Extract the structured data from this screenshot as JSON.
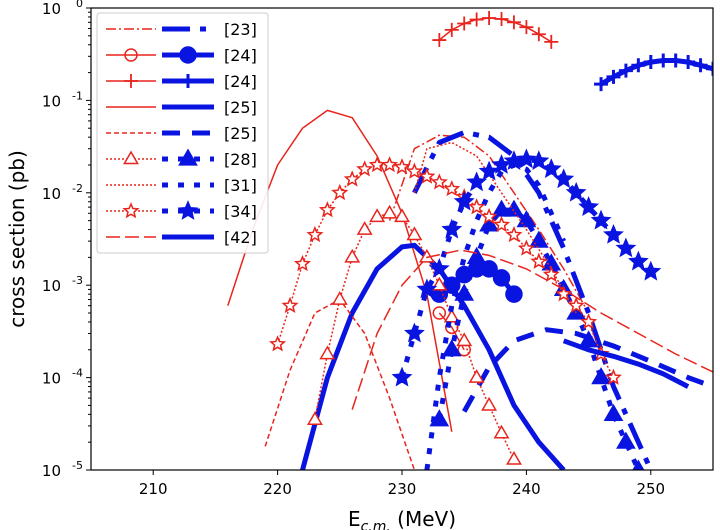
{
  "chart_data": {
    "type": "line",
    "title": "",
    "xlabel": "E",
    "xlabel_sub": "c.m.",
    "xlabel_unit": " (MeV)",
    "ylabel": "cross section (pb)",
    "xlim": [
      205,
      255
    ],
    "ylim": [
      1e-05,
      1
    ],
    "yscale": "log",
    "grid": false,
    "legend_position": "top-left",
    "x_ticks": [
      210,
      220,
      230,
      240,
      250
    ],
    "y_ticks": [
      {
        "base": "10",
        "exp": "0",
        "v": 1
      },
      {
        "base": "10",
        "exp": "-1",
        "v": 0.1
      },
      {
        "base": "10",
        "exp": "-2",
        "v": 0.01
      },
      {
        "base": "10",
        "exp": "-3",
        "v": 0.001
      },
      {
        "base": "10",
        "exp": "-4",
        "v": 0.0001
      },
      {
        "base": "10",
        "exp": "-5",
        "v": 1e-05
      }
    ],
    "colors": {
      "red": "#e8241c",
      "blue": "#0a14e0"
    },
    "legend": [
      {
        "label": "[23]",
        "style": "dashdot",
        "marker": "none"
      },
      {
        "label": "[24]",
        "style": "solid",
        "marker": "circle"
      },
      {
        "label": "[24]",
        "style": "solid",
        "marker": "plus"
      },
      {
        "label": "[25]",
        "style": "solid",
        "marker": "none"
      },
      {
        "label": "[25]",
        "style": "dashed",
        "marker": "none"
      },
      {
        "label": "[28]",
        "style": "dotted",
        "marker": "triangle"
      },
      {
        "label": "[31]",
        "style": "dotted",
        "marker": "none"
      },
      {
        "label": "[34]",
        "style": "dotted",
        "marker": "star"
      },
      {
        "label": "[42]",
        "style": "longdash",
        "marker": "none"
      }
    ],
    "series": [
      {
        "ref": "[23]",
        "color": "red",
        "style": "dashdot",
        "marker": "none",
        "x": [
          229,
          231,
          233,
          235,
          237,
          239,
          241,
          243,
          245
        ],
        "y": [
          0.005,
          0.03,
          0.042,
          0.04,
          0.025,
          0.01,
          0.004,
          0.0015,
          0.0005
        ]
      },
      {
        "ref": "[23]",
        "color": "blue",
        "style": "dashdot",
        "marker": "none",
        "x": [
          231,
          233,
          235,
          237,
          239,
          241,
          243,
          245,
          247,
          249,
          250
        ],
        "y": [
          0.01,
          0.035,
          0.045,
          0.04,
          0.025,
          0.01,
          0.0025,
          0.0005,
          8e-05,
          2e-05,
          1e-05
        ]
      },
      {
        "ref": "[24]",
        "color": "red",
        "style": "solid",
        "marker": "circle",
        "x": [
          233,
          234,
          235
        ],
        "y": [
          0.0005,
          0.00035,
          0.0002
        ]
      },
      {
        "ref": "[24]",
        "color": "blue",
        "style": "solid",
        "marker": "circle",
        "x": [
          233,
          234,
          235,
          236,
          237,
          238,
          239
        ],
        "y": [
          0.0008,
          0.001,
          0.0013,
          0.0015,
          0.0015,
          0.0012,
          0.0008
        ]
      },
      {
        "ref": "[24]",
        "color": "red",
        "style": "solid",
        "marker": "plus",
        "x": [
          233,
          234,
          235,
          236,
          237,
          238,
          239,
          240,
          241,
          242
        ],
        "y": [
          0.45,
          0.58,
          0.68,
          0.75,
          0.78,
          0.76,
          0.7,
          0.62,
          0.52,
          0.43
        ]
      },
      {
        "ref": "[24]",
        "color": "blue",
        "style": "solid",
        "marker": "plus",
        "x": [
          246,
          247,
          248,
          249,
          250,
          251,
          252,
          253,
          254,
          255
        ],
        "y": [
          0.15,
          0.18,
          0.21,
          0.24,
          0.26,
          0.27,
          0.27,
          0.26,
          0.24,
          0.22
        ]
      },
      {
        "ref": "[25]",
        "color": "red",
        "style": "solid",
        "marker": "none",
        "x": [
          216,
          218,
          220,
          222,
          224,
          226,
          228,
          230,
          232,
          234
        ],
        "y": [
          0.0006,
          0.004,
          0.02,
          0.05,
          0.078,
          0.065,
          0.025,
          0.006,
          0.0008,
          2.6e-05
        ]
      },
      {
        "ref": "[25]",
        "color": "blue",
        "style": "solid",
        "marker": "none",
        "x": [
          222,
          224,
          226,
          228,
          230,
          231,
          233,
          235,
          237,
          239,
          241,
          243
        ],
        "y": [
          1e-05,
          0.0001,
          0.0005,
          0.0015,
          0.0026,
          0.0027,
          0.0015,
          0.0006,
          0.0002,
          5e-05,
          2e-05,
          1e-05
        ]
      },
      {
        "ref": "[25]",
        "color": "red",
        "style": "dashed",
        "marker": "none",
        "x": [
          219,
          221,
          223,
          225,
          227,
          229,
          231
        ],
        "y": [
          1.8e-05,
          0.00012,
          0.0005,
          0.0007,
          0.0003,
          6e-05,
          1e-05
        ]
      },
      {
        "ref": "[25]",
        "color": "blue",
        "style": "dashed",
        "marker": "none",
        "x": [
          235,
          237,
          239,
          241.6,
          244,
          247,
          250,
          253,
          255
        ],
        "y": [
          4.3e-05,
          0.00013,
          0.00025,
          0.00033,
          0.0003,
          0.00022,
          0.00015,
          0.0001,
          8e-05
        ]
      },
      {
        "ref": "[28]",
        "color": "red",
        "style": "dotted",
        "marker": "triangle",
        "x": [
          223,
          224,
          225,
          226,
          227,
          228,
          229,
          230,
          231,
          232,
          233,
          234,
          235,
          236,
          237,
          238,
          239
        ],
        "y": [
          3.5e-05,
          0.00018,
          0.0007,
          0.002,
          0.004,
          0.0055,
          0.006,
          0.0055,
          0.0035,
          0.002,
          0.001,
          0.00045,
          0.00025,
          0.0001,
          5e-05,
          2.5e-05,
          1.3e-05
        ]
      },
      {
        "ref": "[28]",
        "color": "blue",
        "style": "dotted",
        "marker": "triangle",
        "x": [
          233,
          234,
          235,
          236,
          237,
          238,
          239,
          240,
          241,
          242,
          243,
          244,
          245,
          246,
          247,
          248,
          249
        ],
        "y": [
          3.5e-05,
          0.0002,
          0.0008,
          0.002,
          0.0045,
          0.0065,
          0.0065,
          0.005,
          0.003,
          0.0017,
          0.0009,
          0.0005,
          0.00025,
          0.0001,
          4e-05,
          2e-05,
          1e-05
        ]
      },
      {
        "ref": "[31]",
        "color": "red",
        "style": "dotted",
        "marker": "none",
        "x": [
          231,
          232,
          234,
          236,
          238,
          240,
          242,
          244
        ],
        "y": [
          0.01,
          0.03,
          0.035,
          0.025,
          0.01,
          0.004,
          0.0015,
          0.0005
        ]
      },
      {
        "ref": "[31]",
        "color": "blue",
        "style": "dotted",
        "marker": "none",
        "x": [
          232,
          233,
          234,
          235,
          236,
          237,
          238,
          239,
          240,
          241,
          242,
          243
        ],
        "y": [
          1e-05,
          0.0001,
          0.0006,
          0.002,
          0.005,
          0.01,
          0.017,
          0.02,
          0.018,
          0.012,
          0.006,
          0.003
        ]
      },
      {
        "ref": "[34]",
        "color": "red",
        "style": "dotted",
        "marker": "star",
        "x": [
          220,
          221,
          222,
          223,
          224,
          225,
          226,
          227,
          228,
          229,
          230,
          231,
          232,
          233,
          234,
          235,
          236,
          237,
          238,
          239,
          240,
          241,
          242,
          243,
          244,
          245,
          246,
          247
        ],
        "y": [
          0.00023,
          0.0006,
          0.0017,
          0.0035,
          0.0065,
          0.01,
          0.014,
          0.018,
          0.02,
          0.02,
          0.019,
          0.017,
          0.015,
          0.013,
          0.011,
          0.009,
          0.007,
          0.0055,
          0.0045,
          0.0035,
          0.0025,
          0.0018,
          0.0013,
          0.0008,
          0.0006,
          0.0004,
          0.00018,
          0.0001
        ]
      },
      {
        "ref": "[34]",
        "color": "blue",
        "style": "dotted",
        "marker": "star",
        "x": [
          230,
          231,
          232,
          233,
          234,
          235,
          236,
          237,
          238,
          239,
          240,
          241,
          242,
          243,
          244,
          245,
          246,
          247,
          248,
          249,
          250
        ],
        "y": [
          0.0001,
          0.0003,
          0.0009,
          0.0015,
          0.004,
          0.008,
          0.013,
          0.017,
          0.02,
          0.022,
          0.023,
          0.022,
          0.018,
          0.014,
          0.01,
          0.007,
          0.005,
          0.0035,
          0.0025,
          0.0018,
          0.0014
        ]
      },
      {
        "ref": "[42]",
        "color": "red",
        "style": "longdash",
        "marker": "none",
        "x": [
          226,
          228,
          230,
          232,
          234.7,
          237,
          240,
          243,
          246,
          249,
          252,
          255
        ],
        "y": [
          4.5e-05,
          0.0003,
          0.001,
          0.002,
          0.0024,
          0.0021,
          0.0015,
          0.0009,
          0.0005,
          0.0003,
          0.00018,
          0.000115
        ]
      },
      {
        "ref": "[42]",
        "color": "blue",
        "style": "solid",
        "marker": "none",
        "x": [
          243,
          245,
          247,
          249,
          251,
          253
        ],
        "y": [
          0.00025,
          0.0002,
          0.00017,
          0.00014,
          0.00011,
          8e-05
        ]
      }
    ]
  }
}
